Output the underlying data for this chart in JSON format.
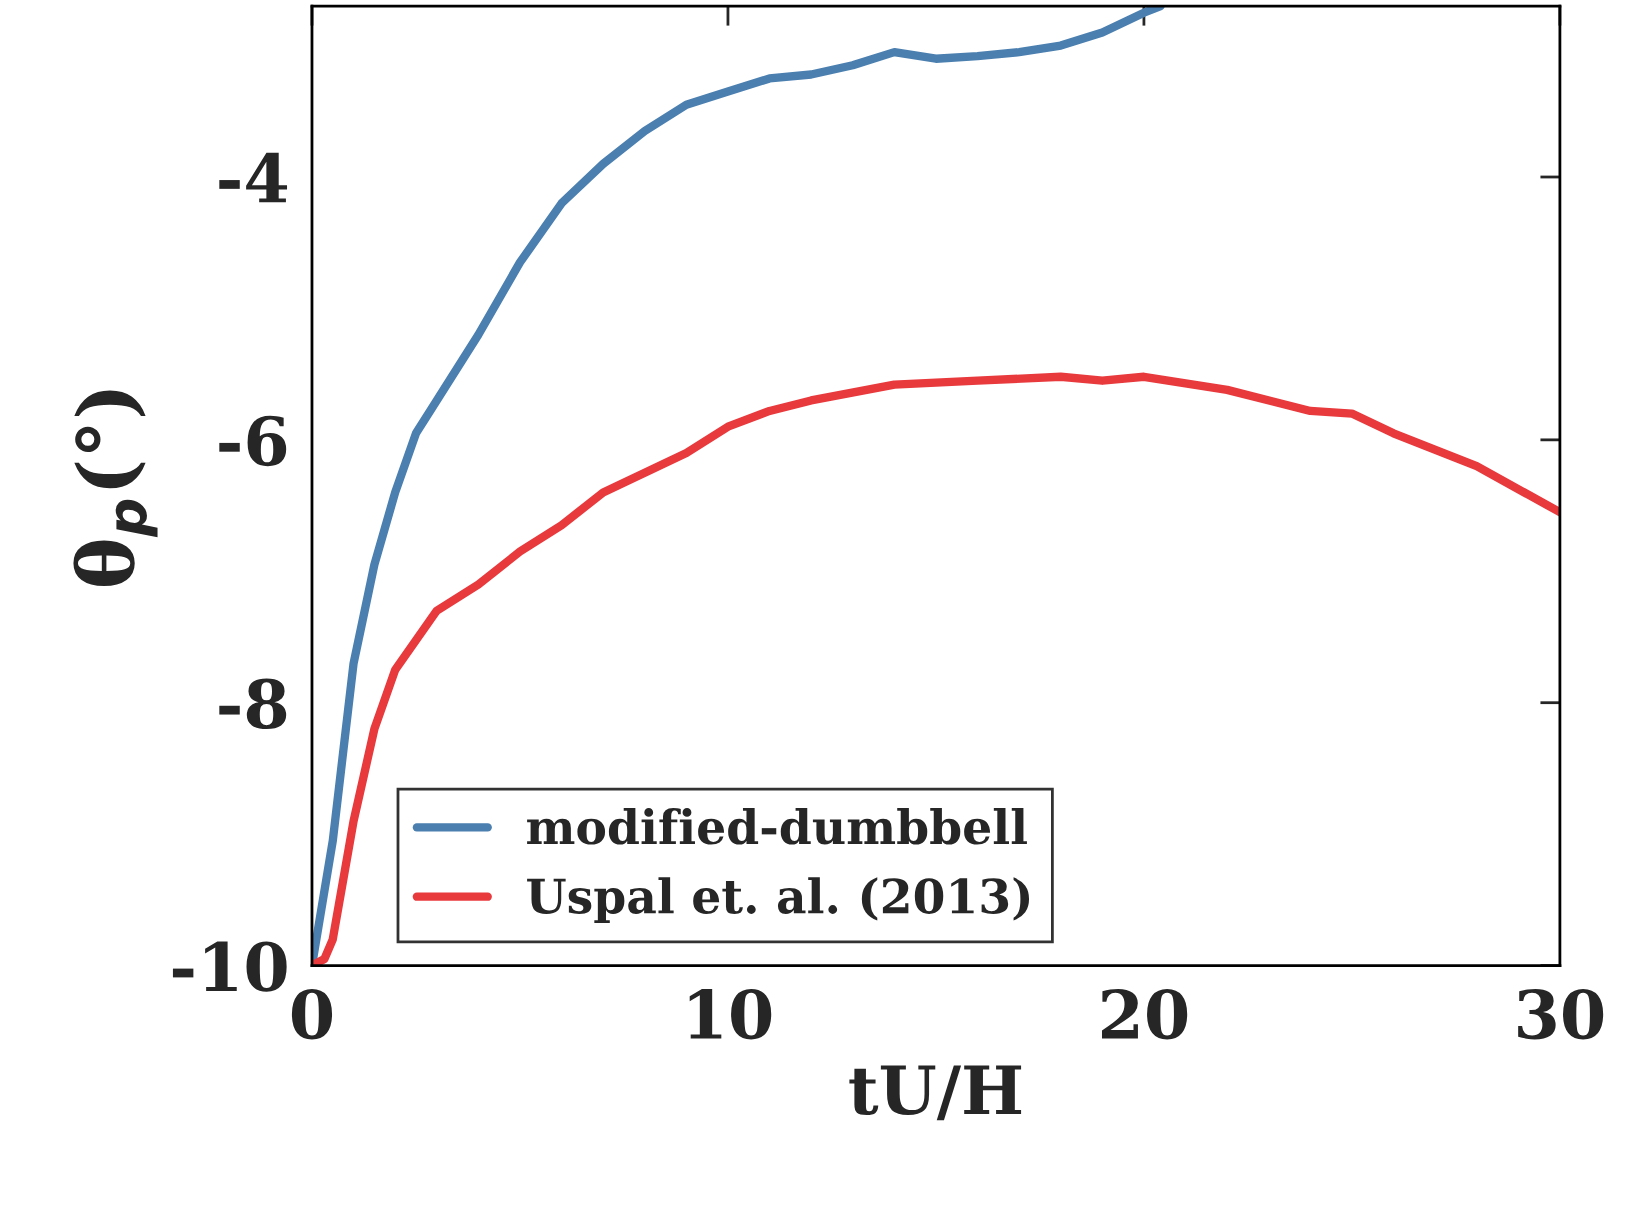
{
  "chart_data": {
    "type": "line",
    "xlabel": "tU/H",
    "ylabel": "θ$_{p}$(°)",
    "xlim": [
      0,
      30
    ],
    "ylim": [
      -10,
      -2.7
    ],
    "xticks": [
      0,
      10,
      20,
      30
    ],
    "yticks": [
      -10,
      -8,
      -6,
      -4
    ],
    "grid": false,
    "legend": "bottom left",
    "marker": "none",
    "line_style": "solid",
    "series": [
      {
        "name": "modified-dumbbell",
        "color": "#4a7fb0",
        "x": [
          0,
          0.5,
          1,
          1.5,
          2,
          2.5,
          3,
          4,
          5,
          6,
          7,
          8,
          9,
          10,
          11,
          12,
          13,
          14,
          15,
          16,
          17,
          18,
          19,
          20,
          20.4
        ],
        "values": [
          -10,
          -9.05,
          -7.7,
          -6.95,
          -6.4,
          -5.95,
          -5.7,
          -5.2,
          -4.65,
          -4.2,
          -3.9,
          -3.65,
          -3.45,
          -3.35,
          -3.25,
          -3.22,
          -3.15,
          -3.05,
          -3.1,
          -3.08,
          -3.05,
          -3.0,
          -2.9,
          -2.75,
          -2.7
        ]
      },
      {
        "name": "Uspal et. al. (2013)",
        "color": "#e8393d",
        "x": [
          0,
          0.3,
          0.5,
          1,
          1.5,
          2,
          3,
          4,
          5,
          6,
          7,
          8,
          9,
          10,
          11,
          12,
          14,
          16,
          18,
          19,
          20,
          22,
          24,
          25,
          26,
          28,
          30
        ],
        "values": [
          -10,
          -9.95,
          -9.8,
          -8.9,
          -8.2,
          -7.75,
          -7.3,
          -7.1,
          -6.85,
          -6.65,
          -6.4,
          -6.25,
          -6.1,
          -5.9,
          -5.78,
          -5.7,
          -5.58,
          -5.55,
          -5.52,
          -5.55,
          -5.52,
          -5.62,
          -5.78,
          -5.8,
          -5.95,
          -6.2,
          -6.55
        ]
      }
    ]
  }
}
